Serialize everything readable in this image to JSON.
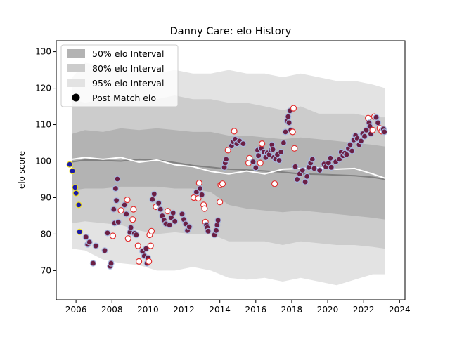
{
  "chart_data": {
    "type": "scatter",
    "title": "Danny Care: elo History",
    "xlabel": "",
    "ylabel": "elo score",
    "xlim": [
      2004.9,
      2024.3
    ],
    "ylim": [
      62,
      133
    ],
    "xticks": [
      2006,
      2008,
      2010,
      2012,
      2014,
      2016,
      2018,
      2020,
      2022,
      2024
    ],
    "yticks": [
      70,
      80,
      90,
      100,
      110,
      120,
      130
    ],
    "grid": false,
    "legend_position": "top-left",
    "legend": [
      {
        "label": "50% elo Interval",
        "kind": "band50"
      },
      {
        "label": "80% elo Interval",
        "kind": "band80"
      },
      {
        "label": "95% elo Interval",
        "kind": "band95"
      },
      {
        "label": "Post Match elo",
        "kind": "marker"
      }
    ],
    "colors": {
      "band50": "#b3b3b3",
      "band80": "#cccccc",
      "band95": "#e3e3e3",
      "mean_gray": "#808080",
      "mean_white": "#ffffff",
      "point_fill": "#6b1f44",
      "point_edge_win": "#a8b8e0",
      "point_edge_loss": "#e03030",
      "early_fill": "#1a1aa8",
      "early_edge": "#f0e020"
    },
    "bands": {
      "x": [
        2005.8,
        2006.5,
        2007.5,
        2008.5,
        2009.5,
        2010.5,
        2011.5,
        2012.5,
        2013.5,
        2014.5,
        2015.5,
        2016.5,
        2017.5,
        2018.5,
        2019.5,
        2020.5,
        2021.5,
        2022.5,
        2023.2
      ],
      "p50_hi": [
        107.5,
        108.5,
        108,
        109,
        108.5,
        109,
        108.5,
        108,
        108,
        107,
        107,
        106.5,
        106,
        106.5,
        106,
        105.5,
        105,
        104.5,
        104
      ],
      "p50_lo": [
        92,
        92.5,
        92.5,
        93,
        93,
        93,
        92.5,
        92.5,
        91.5,
        88,
        87,
        86.5,
        86,
        86.5,
        86,
        85.5,
        85,
        84.5,
        84
      ],
      "p80_hi": [
        117,
        116,
        117,
        118,
        117,
        117,
        118,
        117,
        117,
        116,
        116,
        115,
        114,
        115,
        113,
        113,
        113,
        112,
        112
      ],
      "p80_lo": [
        83,
        83.5,
        83,
        82.5,
        81,
        80,
        80.5,
        80,
        80,
        78,
        78,
        78,
        77,
        78,
        77.5,
        77,
        77,
        76.5,
        76
      ],
      "p95_hi": [
        123,
        127,
        126,
        125,
        125,
        124,
        125,
        124,
        124,
        125,
        124,
        124,
        123,
        124,
        123,
        122,
        122,
        121,
        120
      ],
      "p95_lo": [
        76,
        75.5,
        73,
        72,
        71.5,
        70,
        70,
        71,
        70,
        68,
        67.5,
        68,
        67,
        68,
        67,
        66,
        67.5,
        69,
        69
      ]
    },
    "mean_gray": {
      "x": [
        2005.8,
        2006.5,
        2007.5,
        2008.5,
        2009.5,
        2010.5,
        2011.5,
        2012.5,
        2013.5,
        2014.5,
        2015.5,
        2016.5,
        2017.5,
        2018.5,
        2019.5,
        2020.5,
        2021.5,
        2022.5,
        2023.2
      ],
      "y": [
        99.8,
        100.3,
        100.2,
        100,
        100.5,
        100.3,
        99.6,
        98.8,
        98.3,
        97.8,
        97.6,
        97.3,
        97,
        96.5,
        96.4,
        96.2,
        96,
        95.6,
        95
      ]
    },
    "mean_white": {
      "x": [
        2005.8,
        2006.5,
        2007.5,
        2008.5,
        2009.5,
        2010.5,
        2011.5,
        2012.5,
        2013.5,
        2014.5,
        2015.5,
        2016.5,
        2017.5,
        2018.5,
        2019.5,
        2020.5,
        2021.5,
        2022.5,
        2023.2
      ],
      "y": [
        100.5,
        101,
        100.5,
        101,
        99.7,
        100.3,
        99,
        98.5,
        97.2,
        96.5,
        97.3,
        96.5,
        97.8,
        98,
        98.2,
        97.8,
        98,
        96.5,
        95.3
      ]
    },
    "points": [
      {
        "x": 2005.65,
        "y": 99.1,
        "o": "early"
      },
      {
        "x": 2005.8,
        "y": 97.3,
        "o": "early"
      },
      {
        "x": 2005.95,
        "y": 92.8,
        "o": "early"
      },
      {
        "x": 2006.0,
        "y": 91.2,
        "o": "early"
      },
      {
        "x": 2006.15,
        "y": 88,
        "o": "early"
      },
      {
        "x": 2006.2,
        "y": 80.6,
        "o": "early"
      },
      {
        "x": 2006.55,
        "y": 79.2,
        "o": "w"
      },
      {
        "x": 2006.65,
        "y": 77.2,
        "o": "w"
      },
      {
        "x": 2006.75,
        "y": 77.8,
        "o": "w"
      },
      {
        "x": 2006.95,
        "y": 72,
        "o": "w"
      },
      {
        "x": 2007.1,
        "y": 76.8,
        "o": "w"
      },
      {
        "x": 2007.6,
        "y": 75.5,
        "o": "w"
      },
      {
        "x": 2007.75,
        "y": 80.3,
        "o": "w"
      },
      {
        "x": 2007.9,
        "y": 71.2,
        "o": "w"
      },
      {
        "x": 2007.95,
        "y": 72,
        "o": "w"
      },
      {
        "x": 2008.05,
        "y": 79.5,
        "o": "l"
      },
      {
        "x": 2008.1,
        "y": 86.8,
        "o": "w"
      },
      {
        "x": 2008.15,
        "y": 83,
        "o": "w"
      },
      {
        "x": 2008.2,
        "y": 92.5,
        "o": "w"
      },
      {
        "x": 2008.25,
        "y": 89.2,
        "o": "w"
      },
      {
        "x": 2008.3,
        "y": 95.1,
        "o": "w"
      },
      {
        "x": 2008.35,
        "y": 83.3,
        "o": "w"
      },
      {
        "x": 2008.5,
        "y": 86.5,
        "o": "l"
      },
      {
        "x": 2008.7,
        "y": 88,
        "o": "w"
      },
      {
        "x": 2008.8,
        "y": 85.5,
        "o": "w"
      },
      {
        "x": 2008.85,
        "y": 89.4,
        "o": "l"
      },
      {
        "x": 2008.9,
        "y": 78.8,
        "o": "l"
      },
      {
        "x": 2009.0,
        "y": 80.5,
        "o": "w"
      },
      {
        "x": 2009.05,
        "y": 81.8,
        "o": "w"
      },
      {
        "x": 2009.15,
        "y": 84,
        "o": "l"
      },
      {
        "x": 2009.2,
        "y": 86.8,
        "o": "l"
      },
      {
        "x": 2009.25,
        "y": 80.2,
        "o": "w"
      },
      {
        "x": 2009.35,
        "y": 79.8,
        "o": "w"
      },
      {
        "x": 2009.45,
        "y": 76.8,
        "o": "l"
      },
      {
        "x": 2009.5,
        "y": 72.5,
        "o": "l"
      },
      {
        "x": 2009.7,
        "y": 75.3,
        "o": "w"
      },
      {
        "x": 2009.8,
        "y": 74,
        "o": "w"
      },
      {
        "x": 2009.9,
        "y": 76,
        "o": "w"
      },
      {
        "x": 2009.95,
        "y": 72,
        "o": "w"
      },
      {
        "x": 2010.0,
        "y": 73.5,
        "o": "w"
      },
      {
        "x": 2010.05,
        "y": 72.5,
        "o": "l"
      },
      {
        "x": 2010.1,
        "y": 79.8,
        "o": "l"
      },
      {
        "x": 2010.15,
        "y": 76.8,
        "o": "l"
      },
      {
        "x": 2010.2,
        "y": 80.8,
        "o": "l"
      },
      {
        "x": 2010.25,
        "y": 89.5,
        "o": "w"
      },
      {
        "x": 2010.35,
        "y": 91,
        "o": "w"
      },
      {
        "x": 2010.45,
        "y": 87.5,
        "o": "l"
      },
      {
        "x": 2010.6,
        "y": 88.5,
        "o": "w"
      },
      {
        "x": 2010.7,
        "y": 86.8,
        "o": "w"
      },
      {
        "x": 2010.8,
        "y": 85,
        "o": "w"
      },
      {
        "x": 2010.9,
        "y": 83.8,
        "o": "w"
      },
      {
        "x": 2011.0,
        "y": 82.8,
        "o": "w"
      },
      {
        "x": 2011.1,
        "y": 86.3,
        "o": "l"
      },
      {
        "x": 2011.2,
        "y": 82.5,
        "o": "w"
      },
      {
        "x": 2011.3,
        "y": 84.5,
        "o": "w"
      },
      {
        "x": 2011.4,
        "y": 85.8,
        "o": "w"
      },
      {
        "x": 2011.5,
        "y": 83.5,
        "o": "w"
      },
      {
        "x": 2011.9,
        "y": 85.5,
        "o": "w"
      },
      {
        "x": 2012.0,
        "y": 84,
        "o": "w"
      },
      {
        "x": 2012.1,
        "y": 82.8,
        "o": "w"
      },
      {
        "x": 2012.2,
        "y": 81,
        "o": "w"
      },
      {
        "x": 2012.3,
        "y": 82,
        "o": "w"
      },
      {
        "x": 2012.55,
        "y": 90,
        "o": "l"
      },
      {
        "x": 2012.7,
        "y": 91.5,
        "o": "w"
      },
      {
        "x": 2012.8,
        "y": 89.8,
        "o": "l"
      },
      {
        "x": 2012.85,
        "y": 94,
        "o": "l"
      },
      {
        "x": 2012.9,
        "y": 92.5,
        "o": "w"
      },
      {
        "x": 2013.0,
        "y": 90.8,
        "o": "w"
      },
      {
        "x": 2013.1,
        "y": 88,
        "o": "l"
      },
      {
        "x": 2013.15,
        "y": 87,
        "o": "l"
      },
      {
        "x": 2013.2,
        "y": 83.3,
        "o": "l"
      },
      {
        "x": 2013.25,
        "y": 82.5,
        "o": "w"
      },
      {
        "x": 2013.3,
        "y": 81.8,
        "o": "w"
      },
      {
        "x": 2013.35,
        "y": 80.8,
        "o": "w"
      },
      {
        "x": 2013.7,
        "y": 79.8,
        "o": "w"
      },
      {
        "x": 2013.8,
        "y": 81,
        "o": "w"
      },
      {
        "x": 2013.85,
        "y": 82.5,
        "o": "w"
      },
      {
        "x": 2013.9,
        "y": 83.8,
        "o": "w"
      },
      {
        "x": 2014.0,
        "y": 88.8,
        "o": "l"
      },
      {
        "x": 2014.05,
        "y": 93.5,
        "o": "l"
      },
      {
        "x": 2014.15,
        "y": 93.8,
        "o": "l"
      },
      {
        "x": 2014.25,
        "y": 98.3,
        "o": "w"
      },
      {
        "x": 2014.3,
        "y": 99.5,
        "o": "w"
      },
      {
        "x": 2014.35,
        "y": 100.5,
        "o": "w"
      },
      {
        "x": 2014.45,
        "y": 103,
        "o": "l"
      },
      {
        "x": 2014.65,
        "y": 104.2,
        "o": "w"
      },
      {
        "x": 2014.75,
        "y": 105.3,
        "o": "w"
      },
      {
        "x": 2014.8,
        "y": 108.2,
        "o": "l"
      },
      {
        "x": 2014.85,
        "y": 106,
        "o": "w"
      },
      {
        "x": 2014.95,
        "y": 104.8,
        "o": "w"
      },
      {
        "x": 2015.1,
        "y": 105.5,
        "o": "w"
      },
      {
        "x": 2015.3,
        "y": 104.8,
        "o": "w"
      },
      {
        "x": 2015.6,
        "y": 99.5,
        "o": "l"
      },
      {
        "x": 2015.65,
        "y": 100.8,
        "o": "l"
      },
      {
        "x": 2015.85,
        "y": 99.8,
        "o": "w"
      },
      {
        "x": 2016.0,
        "y": 98.2,
        "o": "w"
      },
      {
        "x": 2016.1,
        "y": 103,
        "o": "w"
      },
      {
        "x": 2016.15,
        "y": 101.5,
        "o": "w"
      },
      {
        "x": 2016.25,
        "y": 99.5,
        "o": "l"
      },
      {
        "x": 2016.3,
        "y": 103.5,
        "o": "w"
      },
      {
        "x": 2016.35,
        "y": 104.8,
        "o": "l"
      },
      {
        "x": 2016.45,
        "y": 102.5,
        "o": "w"
      },
      {
        "x": 2016.55,
        "y": 101,
        "o": "w"
      },
      {
        "x": 2016.65,
        "y": 102.3,
        "o": "w"
      },
      {
        "x": 2016.75,
        "y": 101.8,
        "o": "w"
      },
      {
        "x": 2016.85,
        "y": 103,
        "o": "w"
      },
      {
        "x": 2016.9,
        "y": 104.5,
        "o": "w"
      },
      {
        "x": 2016.95,
        "y": 103.2,
        "o": "w"
      },
      {
        "x": 2017.0,
        "y": 101,
        "o": "w"
      },
      {
        "x": 2017.05,
        "y": 93.8,
        "o": "l"
      },
      {
        "x": 2017.1,
        "y": 100.5,
        "o": "w"
      },
      {
        "x": 2017.2,
        "y": 101.8,
        "o": "w"
      },
      {
        "x": 2017.3,
        "y": 100.2,
        "o": "w"
      },
      {
        "x": 2017.4,
        "y": 102.5,
        "o": "w"
      },
      {
        "x": 2017.55,
        "y": 105,
        "o": "w"
      },
      {
        "x": 2017.65,
        "y": 108,
        "o": "w"
      },
      {
        "x": 2017.75,
        "y": 111,
        "o": "w"
      },
      {
        "x": 2017.8,
        "y": 112.2,
        "o": "w"
      },
      {
        "x": 2017.85,
        "y": 110.5,
        "o": "w"
      },
      {
        "x": 2017.9,
        "y": 113.8,
        "o": "w"
      },
      {
        "x": 2017.95,
        "y": 108.5,
        "o": "w"
      },
      {
        "x": 2018.05,
        "y": 108,
        "o": "l"
      },
      {
        "x": 2018.1,
        "y": 114.5,
        "o": "l"
      },
      {
        "x": 2018.15,
        "y": 103.5,
        "o": "l"
      },
      {
        "x": 2018.2,
        "y": 98.5,
        "o": "w"
      },
      {
        "x": 2018.3,
        "y": 95,
        "o": "w"
      },
      {
        "x": 2018.45,
        "y": 96.5,
        "o": "w"
      },
      {
        "x": 2018.6,
        "y": 97.5,
        "o": "w"
      },
      {
        "x": 2018.75,
        "y": 94.3,
        "o": "w"
      },
      {
        "x": 2018.85,
        "y": 95.8,
        "o": "w"
      },
      {
        "x": 2018.95,
        "y": 98.3,
        "o": "w"
      },
      {
        "x": 2019.05,
        "y": 99.5,
        "o": "w"
      },
      {
        "x": 2019.15,
        "y": 100.5,
        "o": "w"
      },
      {
        "x": 2019.25,
        "y": 98,
        "o": "w"
      },
      {
        "x": 2019.55,
        "y": 97.5,
        "o": "w"
      },
      {
        "x": 2019.8,
        "y": 99.2,
        "o": "w"
      },
      {
        "x": 2019.9,
        "y": 98.5,
        "o": "w"
      },
      {
        "x": 2020.05,
        "y": 99.5,
        "o": "w"
      },
      {
        "x": 2020.15,
        "y": 100.8,
        "o": "w"
      },
      {
        "x": 2020.2,
        "y": 98.3,
        "o": "w"
      },
      {
        "x": 2020.45,
        "y": 99.8,
        "o": "w"
      },
      {
        "x": 2020.65,
        "y": 100.5,
        "o": "w"
      },
      {
        "x": 2020.75,
        "y": 102.5,
        "o": "w"
      },
      {
        "x": 2020.85,
        "y": 101.5,
        "o": "w"
      },
      {
        "x": 2020.95,
        "y": 102.2,
        "o": "w"
      },
      {
        "x": 2021.05,
        "y": 101.8,
        "o": "w"
      },
      {
        "x": 2021.15,
        "y": 103.5,
        "o": "w"
      },
      {
        "x": 2021.25,
        "y": 104.5,
        "o": "w"
      },
      {
        "x": 2021.35,
        "y": 102.8,
        "o": "w"
      },
      {
        "x": 2021.45,
        "y": 105.8,
        "o": "w"
      },
      {
        "x": 2021.55,
        "y": 107,
        "o": "w"
      },
      {
        "x": 2021.65,
        "y": 106.2,
        "o": "w"
      },
      {
        "x": 2021.75,
        "y": 104.5,
        "o": "w"
      },
      {
        "x": 2021.85,
        "y": 105.5,
        "o": "w"
      },
      {
        "x": 2021.95,
        "y": 107.5,
        "o": "w"
      },
      {
        "x": 2022.05,
        "y": 106.8,
        "o": "w"
      },
      {
        "x": 2022.15,
        "y": 108.5,
        "o": "w"
      },
      {
        "x": 2022.25,
        "y": 111.8,
        "o": "l"
      },
      {
        "x": 2022.3,
        "y": 110.5,
        "o": "w"
      },
      {
        "x": 2022.35,
        "y": 109.5,
        "o": "w"
      },
      {
        "x": 2022.4,
        "y": 107.5,
        "o": "w"
      },
      {
        "x": 2022.5,
        "y": 108.5,
        "o": "l"
      },
      {
        "x": 2022.6,
        "y": 112.2,
        "o": "l"
      },
      {
        "x": 2022.7,
        "y": 112,
        "o": "w"
      },
      {
        "x": 2022.8,
        "y": 110.5,
        "o": "w"
      },
      {
        "x": 2022.9,
        "y": 109,
        "o": "l"
      },
      {
        "x": 2023.0,
        "y": 108.2,
        "o": "l"
      },
      {
        "x": 2023.1,
        "y": 108.8,
        "o": "w"
      },
      {
        "x": 2023.15,
        "y": 108,
        "o": "w"
      }
    ]
  }
}
